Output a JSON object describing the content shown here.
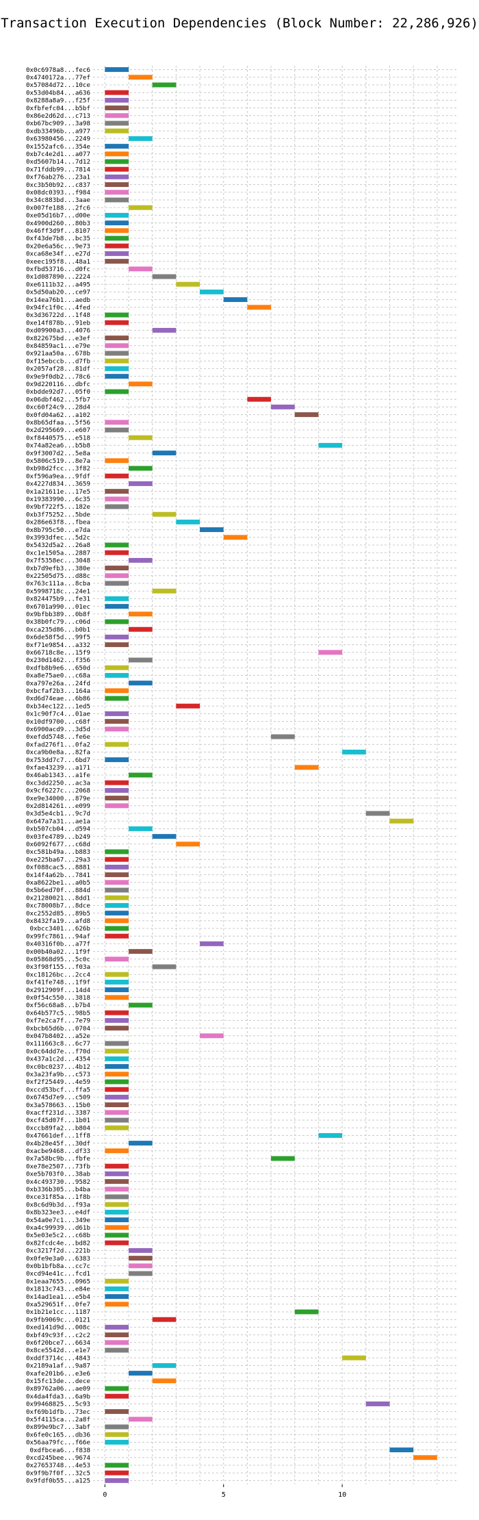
{
  "chart_data": {
    "type": "bar",
    "orientation": "horizontal",
    "title": "Transaction Execution Dependencies (Block Number: 22,286,926)",
    "xlabel": "",
    "ylabel": "",
    "xlim": [
      -0.5,
      14.9
    ],
    "xticks": [
      0,
      5,
      10
    ],
    "grid": true,
    "colors": [
      "#1f77b4",
      "#ff7f0e",
      "#2ca02c",
      "#d62728",
      "#9467bd",
      "#8c564b",
      "#e377c2",
      "#7f7f7f",
      "#bcbd22",
      "#17becf"
    ],
    "bars": [
      {
        "label": "0x0c6978a8...fec6",
        "start": 0,
        "color": 0
      },
      {
        "label": "0x4740172a...77ef",
        "start": 1,
        "color": 1
      },
      {
        "label": "0x57084d72...10ce",
        "start": 2,
        "color": 2
      },
      {
        "label": "0x53d04b84...a636",
        "start": 0,
        "color": 3
      },
      {
        "label": "0x8288a8a9...f25f",
        "start": 0,
        "color": 4
      },
      {
        "label": "0xfbfefc04...b5bf",
        "start": 0,
        "color": 5
      },
      {
        "label": "0x86e2d62d...c713",
        "start": 0,
        "color": 6
      },
      {
        "label": "0xb67bc909...3a98",
        "start": 0,
        "color": 7
      },
      {
        "label": "0xdb33496b...a977",
        "start": 0,
        "color": 8
      },
      {
        "label": "0x63980456...2249",
        "start": 1,
        "color": 9
      },
      {
        "label": "0x1552afc6...354e",
        "start": 0,
        "color": 0
      },
      {
        "label": "0xb7c4e2d1...a077",
        "start": 0,
        "color": 1
      },
      {
        "label": "0xd5607b14...7d12",
        "start": 0,
        "color": 2
      },
      {
        "label": "0x71fddb99...7814",
        "start": 0,
        "color": 3
      },
      {
        "label": "0xf76ab276...23a1",
        "start": 0,
        "color": 4
      },
      {
        "label": "0xc3b50b92...c837",
        "start": 0,
        "color": 5
      },
      {
        "label": "0x08dc0393...f984",
        "start": 0,
        "color": 6
      },
      {
        "label": "0x34c883bd...3aae",
        "start": 0,
        "color": 7
      },
      {
        "label": "0x007fe188...2fc6",
        "start": 1,
        "color": 8
      },
      {
        "label": "0xe05d16b7...d00e",
        "start": 0,
        "color": 9
      },
      {
        "label": "0x4900d260...80b3",
        "start": 0,
        "color": 0
      },
      {
        "label": "0x46ff3d9f...8107",
        "start": 0,
        "color": 1
      },
      {
        "label": "0xf43de7b8...bc35",
        "start": 0,
        "color": 2
      },
      {
        "label": "0x20e6a56c...9e73",
        "start": 0,
        "color": 3
      },
      {
        "label": "0xca68e34f...e27d",
        "start": 0,
        "color": 4
      },
      {
        "label": "0xeec195f8...48a1",
        "start": 0,
        "color": 5
      },
      {
        "label": "0xfbd53716...d0fc",
        "start": 1,
        "color": 6
      },
      {
        "label": "0x1d087890...2224",
        "start": 2,
        "color": 7
      },
      {
        "label": "0xe6111b32...a495",
        "start": 3,
        "color": 8
      },
      {
        "label": "0x5d50ab20...ce97",
        "start": 4,
        "color": 9
      },
      {
        "label": "0x14ea76b1...aedb",
        "start": 5,
        "color": 0
      },
      {
        "label": "0x94fc1f0c...4fed",
        "start": 6,
        "color": 1
      },
      {
        "label": "0x3d36722d...1f48",
        "start": 0,
        "color": 2
      },
      {
        "label": "0xe14f878b...91eb",
        "start": 0,
        "color": 3
      },
      {
        "label": "0xd09900a3...4076",
        "start": 2,
        "color": 4
      },
      {
        "label": "0x822675bd...e3ef",
        "start": 0,
        "color": 5
      },
      {
        "label": "0x84859ac1...e79e",
        "start": 0,
        "color": 6
      },
      {
        "label": "0x921aa50a...678b",
        "start": 0,
        "color": 7
      },
      {
        "label": "0xf15ebccb...d7fb",
        "start": 0,
        "color": 8
      },
      {
        "label": "0x2057af28...81df",
        "start": 0,
        "color": 9
      },
      {
        "label": "0x9e9f0db2...78c6",
        "start": 0,
        "color": 0
      },
      {
        "label": "0x9d220116...dbfc",
        "start": 1,
        "color": 1
      },
      {
        "label": "0xbdde92d7...05f0",
        "start": 0,
        "color": 2
      },
      {
        "label": "0x06dbf462...5fb7",
        "start": 6,
        "color": 3
      },
      {
        "label": "0xc60f24c9...28d4",
        "start": 7,
        "color": 4
      },
      {
        "label": "0x0fd04a62...a102",
        "start": 8,
        "color": 5
      },
      {
        "label": "0x8b65dfaa...5f56",
        "start": 0,
        "color": 6
      },
      {
        "label": "0x2d295669...e607",
        "start": 0,
        "color": 7
      },
      {
        "label": "0xf8440575...e518",
        "start": 1,
        "color": 8
      },
      {
        "label": "0x74a82ea6...b5b8",
        "start": 9,
        "color": 9
      },
      {
        "label": "0x9f3007d2...5e8a",
        "start": 2,
        "color": 0
      },
      {
        "label": "0x5806c519...8e7a",
        "start": 0,
        "color": 1
      },
      {
        "label": "0xb98d2fcc...3f82",
        "start": 1,
        "color": 2
      },
      {
        "label": "0xf596a9ea...9fdf",
        "start": 0,
        "color": 3
      },
      {
        "label": "0x4227d834...3659",
        "start": 1,
        "color": 4
      },
      {
        "label": "0x1a21611e...17e5",
        "start": 0,
        "color": 5
      },
      {
        "label": "0x19383990...6c35",
        "start": 0,
        "color": 6
      },
      {
        "label": "0x9bf722f5...182e",
        "start": 0,
        "color": 7
      },
      {
        "label": "0xb3f75252...5bde",
        "start": 2,
        "color": 8
      },
      {
        "label": "0x286e63f8...fbea",
        "start": 3,
        "color": 9
      },
      {
        "label": "0x8b795c50...e7da",
        "start": 4,
        "color": 0
      },
      {
        "label": "0x3993dfec...5d2c",
        "start": 5,
        "color": 1
      },
      {
        "label": "0x5432d5a2...26a8",
        "start": 0,
        "color": 2
      },
      {
        "label": "0xc1e1505a...2887",
        "start": 0,
        "color": 3
      },
      {
        "label": "0x7f5358ec...3048",
        "start": 1,
        "color": 4
      },
      {
        "label": "0xb7d9efb3...380e",
        "start": 0,
        "color": 5
      },
      {
        "label": "0x22505d75...d88c",
        "start": 0,
        "color": 6
      },
      {
        "label": "0x763c111a...8cba",
        "start": 0,
        "color": 7
      },
      {
        "label": "0x5998718c...24e1",
        "start": 2,
        "color": 8
      },
      {
        "label": "0x824475b9...fe31",
        "start": 0,
        "color": 9
      },
      {
        "label": "0x6701a990...01ec",
        "start": 0,
        "color": 0
      },
      {
        "label": "0x9bfbb389...0b8f",
        "start": 1,
        "color": 1
      },
      {
        "label": "0x38b0fc79...c06d",
        "start": 0,
        "color": 2
      },
      {
        "label": "0xca235d86...b0b1",
        "start": 1,
        "color": 3
      },
      {
        "label": "0x6de58f5d...99f5",
        "start": 0,
        "color": 4
      },
      {
        "label": "0xf71e9854...a332",
        "start": 0,
        "color": 5
      },
      {
        "label": "0x66718c8e...15f9",
        "start": 9,
        "color": 6
      },
      {
        "label": "0x230d1462...f356",
        "start": 1,
        "color": 7
      },
      {
        "label": "0xdfb8b9e6...650d",
        "start": 0,
        "color": 8
      },
      {
        "label": "0xa8e75ae0...c68a",
        "start": 0,
        "color": 9
      },
      {
        "label": "0xa797e26a...24fd",
        "start": 1,
        "color": 0
      },
      {
        "label": "0xbcfaf2b3...164a",
        "start": 0,
        "color": 1
      },
      {
        "label": "0xd6d74eae...6b86",
        "start": 0,
        "color": 2
      },
      {
        "label": "0xb34ec122...1ed5",
        "start": 3,
        "color": 3
      },
      {
        "label": "0x1c90f7c4...01ae",
        "start": 0,
        "color": 4
      },
      {
        "label": "0x10df9700...c68f",
        "start": 0,
        "color": 5
      },
      {
        "label": "0x6900acd9...3d5d",
        "start": 0,
        "color": 6
      },
      {
        "label": "0xefdd5748...fe6e",
        "start": 7,
        "color": 7
      },
      {
        "label": "0xfad276f1...0fa2",
        "start": 0,
        "color": 8
      },
      {
        "label": "0xca9b0e8a...82fa",
        "start": 10,
        "color": 9
      },
      {
        "label": "0x753dd7c7...6bd7",
        "start": 0,
        "color": 0
      },
      {
        "label": "0xfae43239...a171",
        "start": 8,
        "color": 1
      },
      {
        "label": "0x46ab1343...a1fe",
        "start": 1,
        "color": 2
      },
      {
        "label": "0xc3dd2250...ac3a",
        "start": 0,
        "color": 3
      },
      {
        "label": "0x9cf6227c...2068",
        "start": 0,
        "color": 4
      },
      {
        "label": "0xe9e34000...879e",
        "start": 0,
        "color": 5
      },
      {
        "label": "0x2d814261...e099",
        "start": 0,
        "color": 6
      },
      {
        "label": "0x3d5e4cb1...9c7d",
        "start": 11,
        "color": 7
      },
      {
        "label": "0x647a7a31...ae1a",
        "start": 12,
        "color": 8
      },
      {
        "label": "0xb507cb04...d594",
        "start": 1,
        "color": 9
      },
      {
        "label": "0x03fe4789...b249",
        "start": 2,
        "color": 0
      },
      {
        "label": "0x6092f677...c68d",
        "start": 3,
        "color": 1
      },
      {
        "label": "0xc581b49a...b883",
        "start": 0,
        "color": 2
      },
      {
        "label": "0xe225ba67...29a3",
        "start": 0,
        "color": 3
      },
      {
        "label": "0xf088cac5...8881",
        "start": 0,
        "color": 4
      },
      {
        "label": "0x14f4a62b...7841",
        "start": 0,
        "color": 5
      },
      {
        "label": "0xa8622be1...a0b5",
        "start": 0,
        "color": 6
      },
      {
        "label": "0x5b6ed70f...884d",
        "start": 0,
        "color": 7
      },
      {
        "label": "0x21280021...8dd1",
        "start": 0,
        "color": 8
      },
      {
        "label": "0xc78008b7...8dce",
        "start": 0,
        "color": 9
      },
      {
        "label": "0xc2552d85...89b5",
        "start": 0,
        "color": 0
      },
      {
        "label": "0x8432fa19...afd8",
        "start": 0,
        "color": 1
      },
      {
        "label": "0xbcc3401...626b",
        "start": 0,
        "color": 2
      },
      {
        "label": "0x99fc7861...94af",
        "start": 0,
        "color": 3
      },
      {
        "label": "0x40316f0b...a77f",
        "start": 4,
        "color": 4
      },
      {
        "label": "0x00b40a02...1f9f",
        "start": 1,
        "color": 5
      },
      {
        "label": "0x05868d95...5c0c",
        "start": 0,
        "color": 6
      },
      {
        "label": "0x3f98f155...f03a",
        "start": 2,
        "color": 7
      },
      {
        "label": "0xc18126bc...2cc4",
        "start": 0,
        "color": 8
      },
      {
        "label": "0xf41fe748...1f9f",
        "start": 0,
        "color": 9
      },
      {
        "label": "0x2912909f...14d4",
        "start": 0,
        "color": 0
      },
      {
        "label": "0x0f54c550...3818",
        "start": 0,
        "color": 1
      },
      {
        "label": "0xf56c68a8...b7b4",
        "start": 1,
        "color": 2
      },
      {
        "label": "0x64b577c5...98b5",
        "start": 0,
        "color": 3
      },
      {
        "label": "0xf7e2ca7f...7e79",
        "start": 0,
        "color": 4
      },
      {
        "label": "0xbcb65d6b...0704",
        "start": 0,
        "color": 5
      },
      {
        "label": "0x047b8402...a52e",
        "start": 4,
        "color": 6
      },
      {
        "label": "0x111663c8...6c77",
        "start": 0,
        "color": 7
      },
      {
        "label": "0x0c64dd7e...f70d",
        "start": 0,
        "color": 8
      },
      {
        "label": "0x437a1c2d...4354",
        "start": 0,
        "color": 9
      },
      {
        "label": "0xc0bc0237...4b12",
        "start": 0,
        "color": 0
      },
      {
        "label": "0x3a23fa9b...c573",
        "start": 0,
        "color": 1
      },
      {
        "label": "0xf2f25449...4e59",
        "start": 0,
        "color": 2
      },
      {
        "label": "0xccd53bcf...ffa5",
        "start": 0,
        "color": 3
      },
      {
        "label": "0x6745d7e9...c509",
        "start": 0,
        "color": 4
      },
      {
        "label": "0x3a578663...15b0",
        "start": 0,
        "color": 5
      },
      {
        "label": "0xacff231d...3387",
        "start": 0,
        "color": 6
      },
      {
        "label": "0xcf45d07f...1b01",
        "start": 0,
        "color": 7
      },
      {
        "label": "0xccb89fa2...b804",
        "start": 0,
        "color": 8
      },
      {
        "label": "0x47661def...1ff8",
        "start": 9,
        "color": 9
      },
      {
        "label": "0x4b28e45f...30df",
        "start": 1,
        "color": 0
      },
      {
        "label": "0xacbe9468...df33",
        "start": 0,
        "color": 1
      },
      {
        "label": "0x7a58bc9b...fbfe",
        "start": 7,
        "color": 2
      },
      {
        "label": "0xe78e2507...73fb",
        "start": 0,
        "color": 3
      },
      {
        "label": "0xe5b703f0...38ab",
        "start": 0,
        "color": 4
      },
      {
        "label": "0x4c493730...9582",
        "start": 0,
        "color": 5
      },
      {
        "label": "0xb336b305...b4ba",
        "start": 0,
        "color": 6
      },
      {
        "label": "0xce31f85a...1f8b",
        "start": 0,
        "color": 7
      },
      {
        "label": "0x8c6d9b3d...f93a",
        "start": 0,
        "color": 8
      },
      {
        "label": "0x8b323ee3...e4df",
        "start": 0,
        "color": 9
      },
      {
        "label": "0x54a0e7c1...349e",
        "start": 0,
        "color": 0
      },
      {
        "label": "0xa4c99939...d61b",
        "start": 0,
        "color": 1
      },
      {
        "label": "0x5e03e5c2...c68b",
        "start": 0,
        "color": 2
      },
      {
        "label": "0x82fcdc4e...bd82",
        "start": 0,
        "color": 3
      },
      {
        "label": "0xc3217f2d...221b",
        "start": 1,
        "color": 4
      },
      {
        "label": "0x0fe9e3a0...6383",
        "start": 1,
        "color": 5
      },
      {
        "label": "0x0b1bfb8a...cc7c",
        "start": 1,
        "color": 6
      },
      {
        "label": "0xcd94e41c...fcd1",
        "start": 1,
        "color": 7
      },
      {
        "label": "0x1eaa7655...0965",
        "start": 0,
        "color": 8
      },
      {
        "label": "0x1813c743...e84e",
        "start": 0,
        "color": 9
      },
      {
        "label": "0x14ad1ea1...e5b4",
        "start": 0,
        "color": 0
      },
      {
        "label": "0xa529651f...0fe7",
        "start": 0,
        "color": 1
      },
      {
        "label": "0x1b21e1cc...1187",
        "start": 8,
        "color": 2
      },
      {
        "label": "0x9fb9069c...0121",
        "start": 2,
        "color": 3
      },
      {
        "label": "0xed141d9d...008c",
        "start": 0,
        "color": 4
      },
      {
        "label": "0xbf49c93f...c2c2",
        "start": 0,
        "color": 5
      },
      {
        "label": "0x6f20bce7...6634",
        "start": 0,
        "color": 6
      },
      {
        "label": "0x8ce5542d...e1e7",
        "start": 0,
        "color": 7
      },
      {
        "label": "0xddf3714c...4843",
        "start": 10,
        "color": 8
      },
      {
        "label": "0x2189a1af...9a87",
        "start": 2,
        "color": 9
      },
      {
        "label": "0xafe201b6...e3e6",
        "start": 1,
        "color": 0
      },
      {
        "label": "0x15fc13de...dece",
        "start": 2,
        "color": 1
      },
      {
        "label": "0x89762a06...ae09",
        "start": 0,
        "color": 2
      },
      {
        "label": "0x4da4fda3...6a9b",
        "start": 0,
        "color": 3
      },
      {
        "label": "0x99468825...5c93",
        "start": 11,
        "color": 4
      },
      {
        "label": "0xf69b1dfb...73ec",
        "start": 0,
        "color": 5
      },
      {
        "label": "0x5f4115ca...2a8f",
        "start": 1,
        "color": 6
      },
      {
        "label": "0x899e9bc7...3abf",
        "start": 0,
        "color": 7
      },
      {
        "label": "0x6fe0c165...db36",
        "start": 0,
        "color": 8
      },
      {
        "label": "0x56aa79fc...f66e",
        "start": 0,
        "color": 9
      },
      {
        "label": "0xdfbcea6...f838",
        "start": 12,
        "color": 0
      },
      {
        "label": "0xcd245bee...9674",
        "start": 13,
        "color": 1
      },
      {
        "label": "0x27653748...4e53",
        "start": 0,
        "color": 2
      },
      {
        "label": "0x9f9b7f0f...32c5",
        "start": 0,
        "color": 3
      },
      {
        "label": "0x9fdf0b55...a125",
        "start": 0,
        "color": 4
      }
    ]
  }
}
